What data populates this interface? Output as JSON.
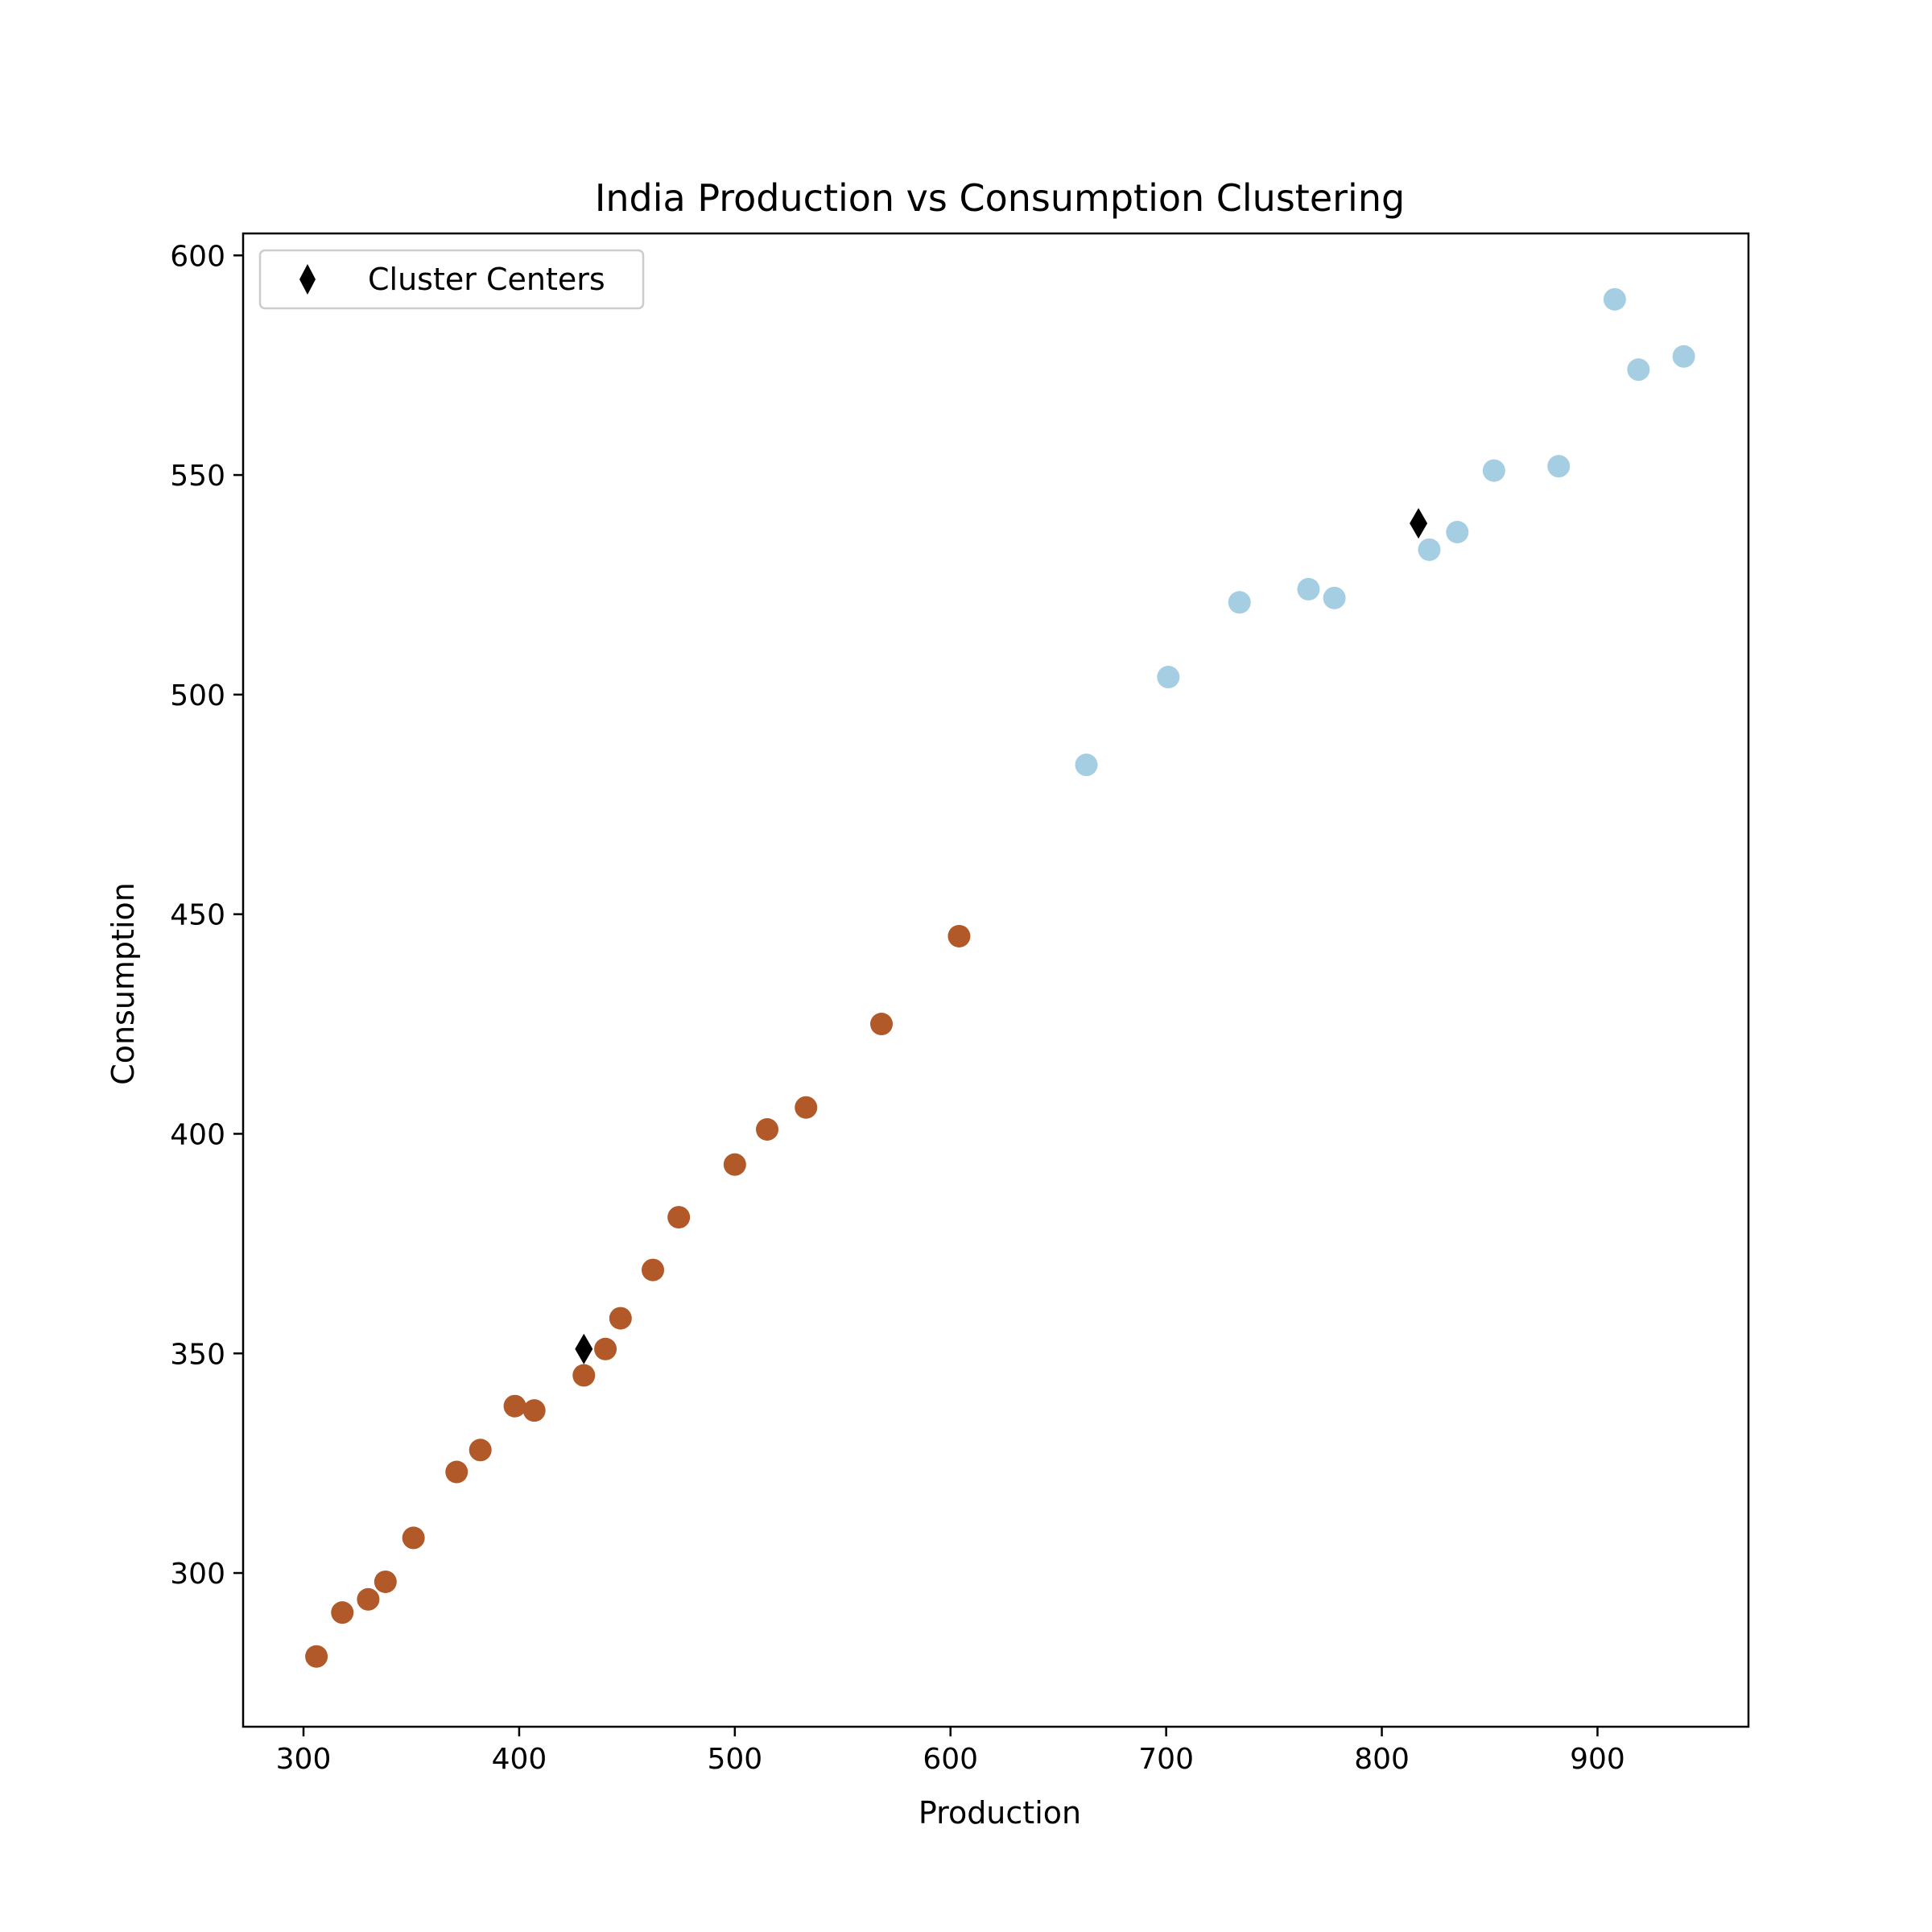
{
  "chart_data": {
    "type": "scatter",
    "title": "India Production vs Consumption Clustering",
    "xlabel": "Production",
    "ylabel": "Consumption",
    "xlim": [
      272,
      970
    ],
    "ylim": [
      265,
      605
    ],
    "xticks": [
      300,
      400,
      500,
      600,
      700,
      800,
      900
    ],
    "yticks": [
      300,
      350,
      400,
      450,
      500,
      550,
      600
    ],
    "grid": false,
    "legend": {
      "placement": "top-left",
      "entries": [
        "Cluster Centers"
      ]
    },
    "series": [
      {
        "color": "#b15928",
        "points": [
          [
            306,
            281
          ],
          [
            318,
            291
          ],
          [
            330,
            294
          ],
          [
            338,
            298
          ],
          [
            351,
            308
          ],
          [
            371,
            323
          ],
          [
            382,
            328
          ],
          [
            398,
            338
          ],
          [
            407,
            337
          ],
          [
            430,
            345
          ],
          [
            440,
            351
          ],
          [
            447,
            358
          ],
          [
            462,
            369
          ],
          [
            474,
            381
          ],
          [
            500,
            393
          ],
          [
            515,
            401
          ],
          [
            533,
            406
          ],
          [
            568,
            425
          ],
          [
            604,
            445
          ]
        ]
      },
      {
        "color": "#a6cee3",
        "points": [
          [
            663,
            484
          ],
          [
            701,
            504
          ],
          [
            734,
            521
          ],
          [
            766,
            524
          ],
          [
            778,
            522
          ],
          [
            822,
            533
          ],
          [
            835,
            537
          ],
          [
            852,
            551
          ],
          [
            882,
            552
          ],
          [
            908,
            590
          ],
          [
            919,
            574
          ],
          [
            940,
            577
          ]
        ]
      },
      {
        "name": "Cluster Centers",
        "marker": "diamond",
        "color": "#000000",
        "points": [
          [
            430,
            351
          ],
          [
            817,
            539
          ]
        ]
      }
    ]
  }
}
